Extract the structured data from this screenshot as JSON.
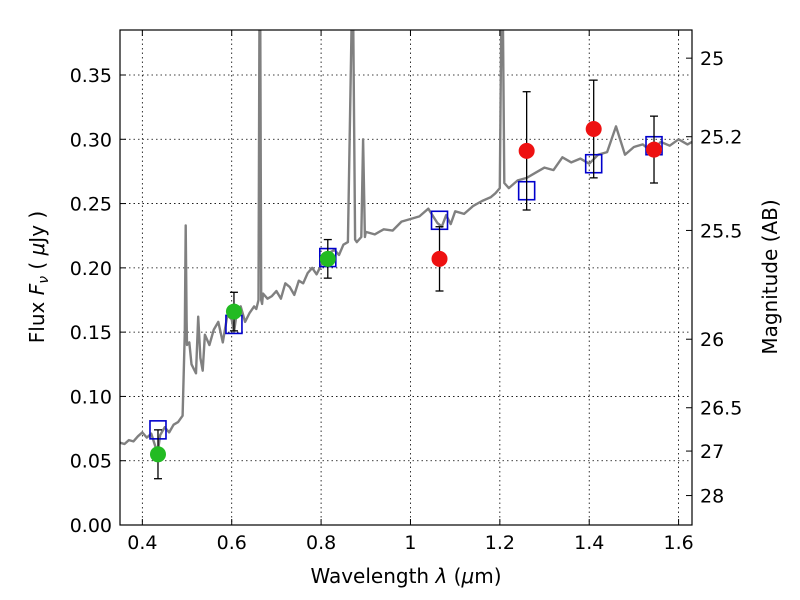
{
  "chart_data": {
    "type": "scatter",
    "title": "",
    "xlabel": {
      "prefix": "Wavelength  ",
      "symbol": "λ",
      "unit_open": " (",
      "unit_mu": "μ",
      "unit_rest": "m)"
    },
    "ylabel": {
      "prefix": "Flux  ",
      "symbol": "F",
      "sub": "ν",
      "unit_open": "  ( ",
      "unit_mu": "μ",
      "unit_rest": "Jy )"
    },
    "y2label": "Magnitude (AB)",
    "xlim": [
      0.35,
      1.63
    ],
    "ylim": [
      0.0,
      0.385
    ],
    "xticks": [
      0.4,
      0.6,
      0.8,
      1.0,
      1.2,
      1.4,
      1.6
    ],
    "xtick_labels": [
      "0.4",
      "0.6",
      "0.8",
      "1",
      "1.2",
      "1.4",
      "1.6"
    ],
    "yticks": [
      0.0,
      0.05,
      0.1,
      0.15,
      0.2,
      0.25,
      0.3,
      0.35
    ],
    "ytick_labels": [
      "0.00",
      "0.05",
      "0.10",
      "0.15",
      "0.20",
      "0.25",
      "0.30",
      "0.35"
    ],
    "y2_ticks": [
      {
        "label": "25",
        "flux": 0.3631
      },
      {
        "label": "25.2",
        "flux": 0.302
      },
      {
        "label": "25.5",
        "flux": 0.2291
      },
      {
        "label": "26",
        "flux": 0.1445
      },
      {
        "label": "26.5",
        "flux": 0.0912
      },
      {
        "label": "27",
        "flux": 0.0575
      },
      {
        "label": "28",
        "flux": 0.0229
      }
    ],
    "grid": true,
    "colors": {
      "spectrum": "#808080",
      "model_box": "#0000cc",
      "green": "#22bb22",
      "red": "#ee1111",
      "errorbar": "#000000"
    },
    "series": [
      {
        "kind": "spectrum",
        "x": [
          0.35,
          0.36,
          0.37,
          0.38,
          0.39,
          0.4,
          0.41,
          0.42,
          0.43,
          0.435,
          0.44,
          0.45,
          0.46,
          0.47,
          0.48,
          0.49,
          0.495,
          0.497,
          0.499,
          0.5,
          0.505,
          0.51,
          0.52,
          0.525,
          0.53,
          0.535,
          0.54,
          0.55,
          0.56,
          0.57,
          0.58,
          0.59,
          0.6,
          0.605,
          0.61,
          0.62,
          0.63,
          0.64,
          0.65,
          0.655,
          0.66,
          0.662,
          0.664,
          0.666,
          0.668,
          0.67,
          0.68,
          0.69,
          0.7,
          0.71,
          0.72,
          0.73,
          0.74,
          0.75,
          0.76,
          0.77,
          0.78,
          0.79,
          0.8,
          0.81,
          0.82,
          0.83,
          0.84,
          0.85,
          0.86,
          0.868,
          0.872,
          0.876,
          0.88,
          0.89,
          0.894,
          0.898,
          0.9,
          0.92,
          0.94,
          0.96,
          0.98,
          1.0,
          1.02,
          1.04,
          1.06,
          1.07,
          1.08,
          1.09,
          1.1,
          1.12,
          1.14,
          1.16,
          1.18,
          1.19,
          1.2,
          1.203,
          1.207,
          1.21,
          1.22,
          1.24,
          1.26,
          1.28,
          1.3,
          1.32,
          1.34,
          1.36,
          1.38,
          1.4,
          1.42,
          1.44,
          1.46,
          1.48,
          1.5,
          1.52,
          1.54,
          1.56,
          1.58,
          1.6,
          1.62,
          1.63
        ],
        "y": [
          0.064,
          0.063,
          0.066,
          0.065,
          0.069,
          0.072,
          0.068,
          0.071,
          0.06,
          0.058,
          0.07,
          0.076,
          0.072,
          0.078,
          0.08,
          0.085,
          0.15,
          0.233,
          0.16,
          0.14,
          0.142,
          0.125,
          0.118,
          0.162,
          0.13,
          0.12,
          0.148,
          0.14,
          0.152,
          0.158,
          0.142,
          0.163,
          0.16,
          0.15,
          0.162,
          0.17,
          0.158,
          0.165,
          0.17,
          0.168,
          0.175,
          0.385,
          0.385,
          0.175,
          0.172,
          0.18,
          0.176,
          0.178,
          0.182,
          0.176,
          0.188,
          0.185,
          0.179,
          0.19,
          0.188,
          0.196,
          0.2,
          0.195,
          0.202,
          0.208,
          0.212,
          0.214,
          0.21,
          0.218,
          0.22,
          0.385,
          0.385,
          0.222,
          0.22,
          0.224,
          0.3,
          0.224,
          0.228,
          0.226,
          0.23,
          0.229,
          0.236,
          0.238,
          0.24,
          0.246,
          0.235,
          0.232,
          0.241,
          0.234,
          0.244,
          0.242,
          0.248,
          0.252,
          0.255,
          0.258,
          0.262,
          0.385,
          0.385,
          0.266,
          0.262,
          0.268,
          0.27,
          0.274,
          0.278,
          0.276,
          0.286,
          0.282,
          0.285,
          0.281,
          0.288,
          0.29,
          0.31,
          0.288,
          0.294,
          0.296,
          0.29,
          0.298,
          0.295,
          0.3,
          0.296,
          0.298
        ]
      },
      {
        "kind": "model",
        "x": [
          0.435,
          0.605,
          0.815,
          1.065,
          1.26,
          1.41,
          1.545
        ],
        "y": [
          0.074,
          0.156,
          0.208,
          0.237,
          0.26,
          0.281,
          0.295
        ]
      },
      {
        "kind": "observed-optical",
        "x": [
          0.435,
          0.605,
          0.815
        ],
        "y": [
          0.055,
          0.166,
          0.207
        ],
        "err": [
          0.019,
          0.015,
          0.015
        ]
      },
      {
        "kind": "observed-ir",
        "x": [
          1.065,
          1.26,
          1.41,
          1.545
        ],
        "y": [
          0.207,
          0.291,
          0.308,
          0.292
        ],
        "err": [
          0.025,
          0.046,
          0.038,
          0.026
        ]
      }
    ]
  }
}
